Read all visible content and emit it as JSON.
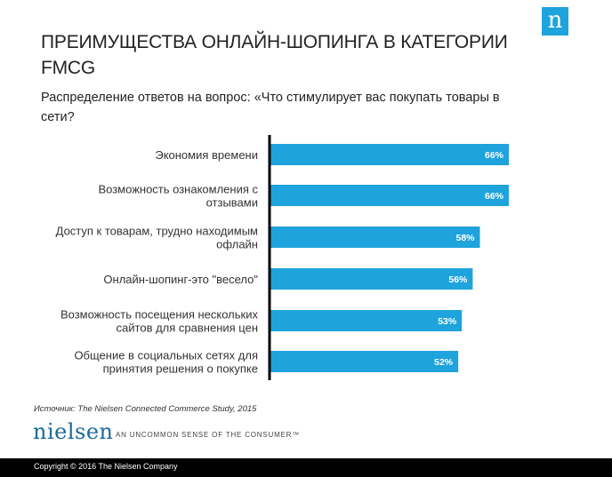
{
  "logo": {
    "glyph": "n"
  },
  "title": "ПРЕИМУЩЕСТВА ОНЛАЙН-ШОПИНГА В КАТЕГОРИИ FMCG",
  "subtitle": "Распределение ответов на вопрос: «Что стимулирует вас покупать товары в сети?",
  "chart_data": {
    "type": "bar",
    "orientation": "horizontal",
    "categories": [
      "Экономия времени",
      "Возможность ознакомления с отзывами",
      "Доступ к товарам, трудно находимым офлайн",
      "Онлайн-шопинг-это \"весело\"",
      "Возможность посещения нескольких сайтов для сравнения цен",
      "Общение в социальных сетях для принятия решения о покупке"
    ],
    "category_lines": [
      [
        "Экономия времени"
      ],
      [
        "Возможность ознакомления с",
        "отзывами"
      ],
      [
        "Доступ к товарам, трудно находимым",
        "офлайн"
      ],
      [
        "Онлайн-шопинг-это \"весело\""
      ],
      [
        "Возможность посещения нескольких",
        "сайтов для сравнения цен"
      ],
      [
        "Общение в социальных сетях для",
        "принятия решения о покупке"
      ]
    ],
    "values": [
      66,
      66,
      58,
      56,
      53,
      52
    ],
    "value_labels": [
      "66%",
      "66%",
      "58%",
      "56%",
      "53%",
      "52%"
    ],
    "bar_color": "#1fa3dc",
    "axis_color": "#000000"
  },
  "source": "Источник: The Nielsen Connected Commerce Study, 2015",
  "brand": {
    "name": "nielsen",
    "tagline": "AN UNCOMMON SENSE OF THE CONSUMER™"
  },
  "footer": {
    "copyright": "Copyright © 2016 The Nielsen Company"
  }
}
